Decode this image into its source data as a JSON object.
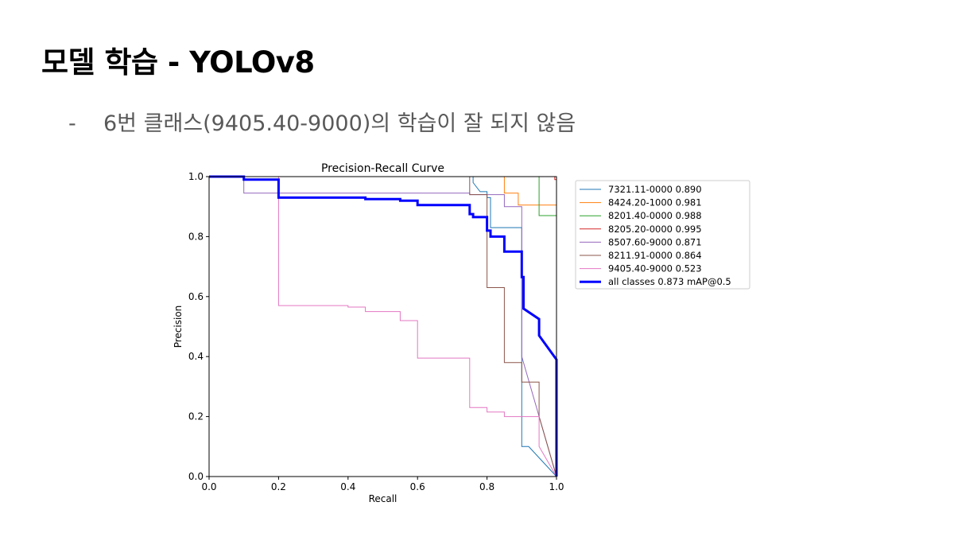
{
  "slide": {
    "title": "모델 학습 - YOLOv8",
    "bullet_marker": "-",
    "bullet_text": "6번 클래스(9405.40-9000)의 학습이 잘 되지 않음"
  },
  "chart_data": {
    "type": "line",
    "title": "Precision-Recall Curve",
    "xlabel": "Recall",
    "ylabel": "Precision",
    "xlim": [
      0,
      1
    ],
    "ylim": [
      0,
      1
    ],
    "xticks": [
      "0.0",
      "0.2",
      "0.4",
      "0.6",
      "0.8",
      "1.0"
    ],
    "yticks": [
      "0.0",
      "0.2",
      "0.4",
      "0.6",
      "0.8",
      "1.0"
    ],
    "grid": false,
    "legend_position": "outside-right",
    "series": [
      {
        "name": "7321.11-0000 0.890",
        "color": "#1f77b4",
        "width": 1,
        "x": [
          0,
          0.76,
          0.76,
          0.78,
          0.8,
          0.8,
          0.81,
          0.81,
          0.9,
          0.9,
          0.9,
          0.9,
          0.92,
          1.0,
          1.0
        ],
        "y": [
          1,
          1,
          0.98,
          0.95,
          0.95,
          0.93,
          0.93,
          0.83,
          0.83,
          0.55,
          0.1,
          0.1,
          0.1,
          0.0,
          0.0
        ]
      },
      {
        "name": "8424.20-1000 0.981",
        "color": "#ff7f0e",
        "width": 1,
        "x": [
          0,
          0.75,
          0.75,
          0.85,
          0.85,
          0.89,
          0.89,
          0.9,
          0.9,
          1.0,
          1.0
        ],
        "y": [
          1,
          1,
          1,
          1,
          0.945,
          0.945,
          0.905,
          0.905,
          0.905,
          0.905,
          0.0
        ]
      },
      {
        "name": "8201.40-0000 0.988",
        "color": "#2ca02c",
        "width": 1,
        "x": [
          0,
          0.95,
          0.95,
          1.0,
          1.0
        ],
        "y": [
          1,
          1,
          0.87,
          0.87,
          0.0
        ]
      },
      {
        "name": "8205.20-0000 0.995",
        "color": "#d62728",
        "width": 1,
        "x": [
          0,
          0.995,
          0.995,
          1.0,
          1.0
        ],
        "y": [
          1,
          1,
          0.99,
          0.99,
          0.0
        ]
      },
      {
        "name": "8507.60-9000 0.871",
        "color": "#9467bd",
        "width": 1,
        "x": [
          0,
          0.1,
          0.1,
          0.75,
          0.75,
          0.85,
          0.85,
          0.9,
          0.9,
          1.0
        ],
        "y": [
          1,
          1,
          0.945,
          0.945,
          0.94,
          0.94,
          0.9,
          0.9,
          0.4,
          0.0
        ]
      },
      {
        "name": "8211.91-0000 0.864",
        "color": "#8c564b",
        "width": 1,
        "x": [
          0,
          0.75,
          0.75,
          0.8,
          0.8,
          0.85,
          0.85,
          0.9,
          0.9,
          0.95,
          0.95,
          1.0,
          1.0
        ],
        "y": [
          1,
          1,
          0.94,
          0.94,
          0.63,
          0.63,
          0.38,
          0.38,
          0.315,
          0.315,
          0.2,
          0.0,
          0.0
        ]
      },
      {
        "name": "9405.40-9000 0.523",
        "color": "#e377c2",
        "width": 1,
        "x": [
          0,
          0.2,
          0.2,
          0.4,
          0.4,
          0.45,
          0.45,
          0.55,
          0.55,
          0.6,
          0.6,
          0.75,
          0.75,
          0.8,
          0.8,
          0.85,
          0.85,
          0.95,
          0.95,
          1.0
        ],
        "y": [
          1,
          1,
          0.57,
          0.57,
          0.565,
          0.565,
          0.55,
          0.55,
          0.52,
          0.52,
          0.395,
          0.395,
          0.23,
          0.23,
          0.215,
          0.215,
          0.2,
          0.2,
          0.1,
          0.0
        ]
      },
      {
        "name": "all classes 0.873 mAP@0.5",
        "color": "#0000ff",
        "width": 3,
        "x": [
          0,
          0.1,
          0.1,
          0.2,
          0.2,
          0.45,
          0.45,
          0.55,
          0.55,
          0.6,
          0.6,
          0.75,
          0.75,
          0.76,
          0.76,
          0.8,
          0.8,
          0.81,
          0.81,
          0.85,
          0.85,
          0.9,
          0.9,
          0.905,
          0.905,
          0.95,
          0.95,
          1.0,
          1.0
        ],
        "y": [
          1,
          1,
          0.99,
          0.99,
          0.93,
          0.93,
          0.925,
          0.925,
          0.92,
          0.92,
          0.905,
          0.905,
          0.875,
          0.875,
          0.865,
          0.865,
          0.82,
          0.82,
          0.8,
          0.8,
          0.75,
          0.75,
          0.665,
          0.665,
          0.56,
          0.525,
          0.47,
          0.39,
          0.0
        ]
      }
    ]
  }
}
